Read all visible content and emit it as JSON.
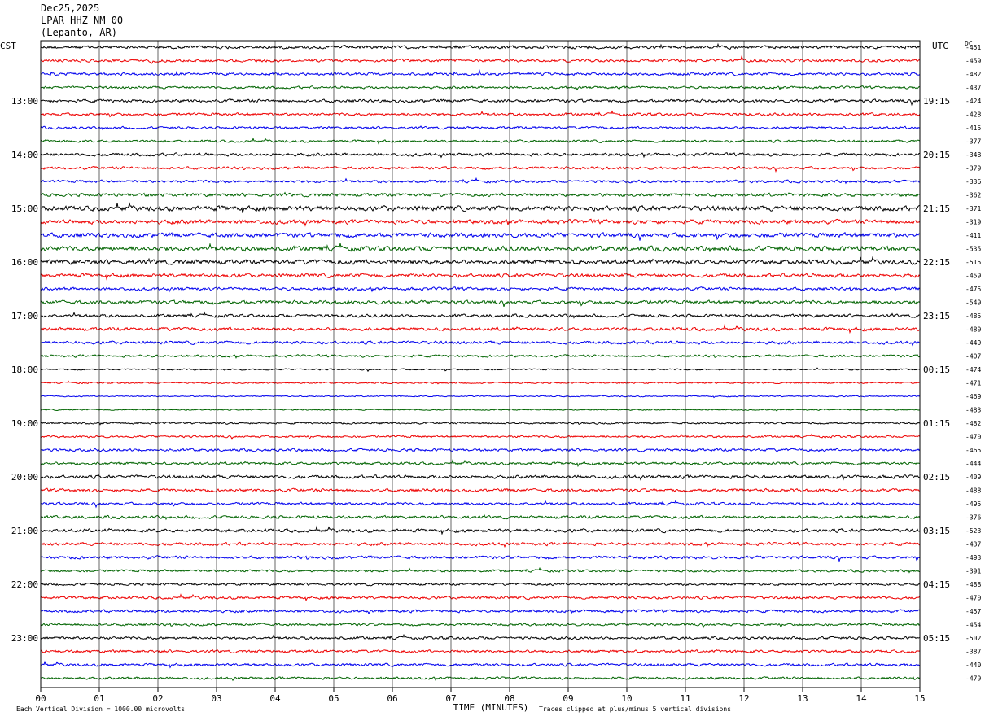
{
  "header": {
    "date": "Dec25,2025",
    "station": "LPAR HHZ NM 00",
    "location": "(Lepanto, AR)"
  },
  "chart_data": {
    "type": "line",
    "title": "Dec25,2025 LPAR HHZ NM 00 (Lepanto, AR)",
    "left_axis_title": "CST",
    "right_axis_title": "UTC",
    "dc_title": "DC",
    "xlabel": "TIME (MINUTES)",
    "xlim": [
      0,
      15
    ],
    "x_ticks": [
      "00",
      "01",
      "02",
      "03",
      "04",
      "05",
      "06",
      "07",
      "08",
      "09",
      "10",
      "11",
      "12",
      "13",
      "14",
      "15"
    ],
    "trace_colors": [
      "#000000",
      "#ee0000",
      "#0000ee",
      "#006400"
    ],
    "left_hour_labels": [
      "13:00",
      "14:00",
      "15:00",
      "16:00",
      "17:00",
      "18:00",
      "19:00",
      "20:00",
      "21:00",
      "22:00",
      "23:00"
    ],
    "right_hour_labels": [
      "19:15",
      "20:15",
      "21:15",
      "22:15",
      "23:15",
      "00:15",
      "01:15",
      "02:15",
      "03:15",
      "04:15",
      "05:15"
    ],
    "dc_offsets": [
      "-451",
      "-459",
      "-482",
      "-437",
      "-424",
      "-428",
      "-415",
      "-377",
      "-348",
      "-379",
      "-336",
      "-362",
      "-371",
      "-319",
      "-411",
      "-535",
      "-515",
      "-459",
      "-475",
      "-549",
      "-485",
      "-480",
      "-449",
      "-407",
      "-474",
      "-471",
      "-469",
      "-483",
      "-482",
      "-470",
      "-465",
      "-444",
      "-409",
      "-488",
      "-495",
      "-376",
      "-523",
      "-437",
      "-493",
      "-391",
      "-488",
      "-470",
      "-457",
      "-454",
      "-502",
      "-387",
      "-440",
      "-479"
    ],
    "trace_amplitude_levels": [
      1.0,
      0.9,
      0.9,
      0.8,
      1.0,
      0.9,
      0.8,
      0.8,
      1.0,
      0.9,
      0.9,
      1.1,
      1.6,
      1.4,
      1.5,
      1.6,
      1.5,
      1.2,
      1.0,
      1.2,
      1.0,
      1.1,
      1.0,
      0.8,
      0.5,
      0.5,
      0.4,
      0.4,
      0.6,
      0.7,
      0.9,
      0.9,
      1.1,
      1.0,
      0.9,
      1.0,
      1.1,
      1.0,
      1.0,
      0.8,
      0.8,
      0.9,
      0.9,
      0.8,
      0.9,
      0.9,
      0.9,
      0.8
    ],
    "grid": "vertical lines at each minute",
    "footer_left": "Each Vertical Division = 1000.00 microvolts",
    "footer_right": "Traces clipped at plus/minus 5 vertical divisions"
  }
}
